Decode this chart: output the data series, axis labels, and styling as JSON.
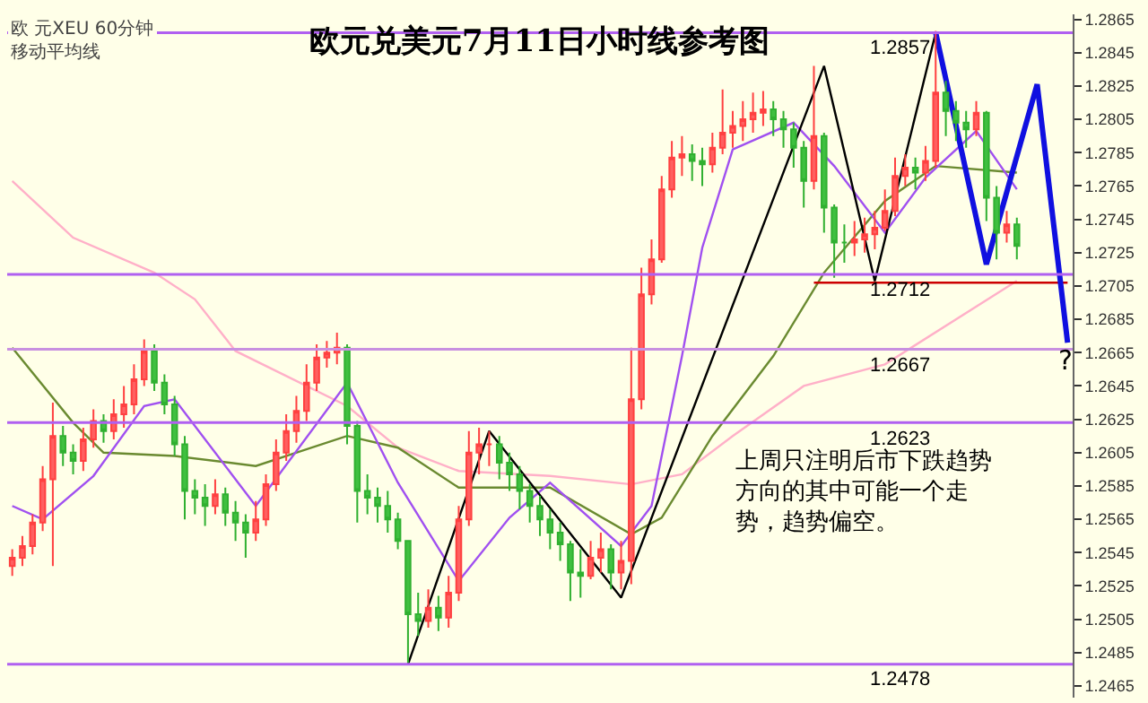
{
  "chart_data": {
    "type": "candlestick",
    "title": "欧元兑美元7月11日小时线参考图",
    "categories": [
      null,
      null,
      null,
      null,
      null,
      null,
      null,
      null,
      null,
      null,
      null,
      null,
      null,
      null,
      null,
      null,
      null,
      null,
      null,
      null,
      null,
      null,
      null,
      null,
      null,
      null,
      null,
      null,
      null,
      null,
      null,
      null,
      null,
      null,
      null,
      null,
      null,
      null,
      null,
      null,
      null,
      null,
      null,
      null,
      null,
      null,
      null,
      null,
      null,
      null,
      null,
      null,
      null,
      null,
      null,
      null,
      null,
      null,
      null,
      null,
      null,
      null,
      null,
      null,
      null,
      null,
      null,
      null,
      null,
      null,
      null,
      null,
      null,
      null,
      null,
      null,
      null,
      null,
      null,
      null,
      null,
      null,
      null,
      null,
      null,
      null,
      null,
      null,
      null,
      null,
      null,
      null,
      null,
      null,
      null,
      null,
      null,
      null,
      null,
      null,
      null,
      null,
      null,
      null,
      null
    ],
    "ohlc": [
      [
        1.2537,
        1.2547,
        1.2531,
        1.2542
      ],
      [
        1.2542,
        1.2555,
        1.2537,
        1.2549
      ],
      [
        1.2549,
        1.2568,
        1.2544,
        1.2563
      ],
      [
        1.2563,
        1.2597,
        1.2558,
        1.2589
      ],
      [
        1.2589,
        1.2635,
        1.2537,
        1.2615
      ],
      [
        1.2615,
        1.2621,
        1.2597,
        1.2605
      ],
      [
        1.2605,
        1.261,
        1.2592,
        1.26
      ],
      [
        1.26,
        1.262,
        1.2594,
        1.2613
      ],
      [
        1.2613,
        1.2631,
        1.2608,
        1.2624
      ],
      [
        1.2624,
        1.2628,
        1.2611,
        1.2618
      ],
      [
        1.2618,
        1.2637,
        1.2613,
        1.2628
      ],
      [
        1.2628,
        1.2645,
        1.262,
        1.2634
      ],
      [
        1.2634,
        1.2658,
        1.2628,
        1.2649
      ],
      [
        1.2649,
        1.2673,
        1.2645,
        1.2666
      ],
      [
        1.2666,
        1.267,
        1.2642,
        1.2647
      ],
      [
        1.2647,
        1.2652,
        1.2628,
        1.2634
      ],
      [
        1.2634,
        1.2639,
        1.2603,
        1.261
      ],
      [
        1.261,
        1.2615,
        1.2565,
        1.2582
      ],
      [
        1.2582,
        1.2589,
        1.2568,
        1.2578
      ],
      [
        1.2578,
        1.2586,
        1.2561,
        1.2573
      ],
      [
        1.2573,
        1.2589,
        1.2568,
        1.258
      ],
      [
        1.258,
        1.2584,
        1.2561,
        1.2569
      ],
      [
        1.2569,
        1.2576,
        1.2552,
        1.2563
      ],
      [
        1.2563,
        1.2568,
        1.2542,
        1.2557
      ],
      [
        1.2557,
        1.2576,
        1.2552,
        1.2565
      ],
      [
        1.2565,
        1.2592,
        1.2561,
        1.2586
      ],
      [
        1.2586,
        1.2613,
        1.2582,
        1.2605
      ],
      [
        1.2605,
        1.2628,
        1.26,
        1.2618
      ],
      [
        1.2618,
        1.2639,
        1.2611,
        1.263
      ],
      [
        1.263,
        1.2658,
        1.2624,
        1.2647
      ],
      [
        1.2647,
        1.267,
        1.2642,
        1.2662
      ],
      [
        1.2662,
        1.2672,
        1.2656,
        1.2665
      ],
      [
        1.2665,
        1.2677,
        1.2658,
        1.2668
      ],
      [
        1.2668,
        1.267,
        1.261,
        1.2621
      ],
      [
        1.2621,
        1.2624,
        1.2563,
        1.2582
      ],
      [
        1.2582,
        1.2592,
        1.2568,
        1.2578
      ],
      [
        1.2578,
        1.2584,
        1.2563,
        1.2573
      ],
      [
        1.2573,
        1.2582,
        1.2557,
        1.2565
      ],
      [
        1.2565,
        1.2569,
        1.2547,
        1.2552
      ],
      [
        1.2552,
        1.2552,
        1.2479,
        1.2508
      ],
      [
        1.2508,
        1.2521,
        1.2495,
        1.2504
      ],
      [
        1.2504,
        1.2523,
        1.25,
        1.2512
      ],
      [
        1.2512,
        1.2519,
        1.2498,
        1.2506
      ],
      [
        1.2506,
        1.2531,
        1.25,
        1.2521
      ],
      [
        1.2521,
        1.2573,
        1.2516,
        1.2565
      ],
      [
        1.2565,
        1.2618,
        1.2561,
        1.2605
      ],
      [
        1.2605,
        1.262,
        1.2592,
        1.261
      ],
      [
        1.261,
        1.2618,
        1.2597,
        1.261
      ],
      [
        1.261,
        1.2615,
        1.2589,
        1.2599
      ],
      [
        1.2599,
        1.2605,
        1.2582,
        1.2592
      ],
      [
        1.2592,
        1.2597,
        1.2571,
        1.2582
      ],
      [
        1.2582,
        1.2586,
        1.2563,
        1.2573
      ],
      [
        1.2573,
        1.2579,
        1.2555,
        1.2565
      ],
      [
        1.2565,
        1.2571,
        1.2547,
        1.2557
      ],
      [
        1.2557,
        1.2563,
        1.254,
        1.255
      ],
      [
        1.255,
        1.2552,
        1.2516,
        1.2533
      ],
      [
        1.2533,
        1.2547,
        1.2518,
        1.2531
      ],
      [
        1.2531,
        1.2552,
        1.2529,
        1.2542
      ],
      [
        1.2542,
        1.2557,
        1.2533,
        1.2547
      ],
      [
        1.2547,
        1.255,
        1.2523,
        1.2533
      ],
      [
        1.2533,
        1.2552,
        1.2523,
        1.254
      ],
      [
        1.254,
        1.2668,
        1.2526,
        1.2637
      ],
      [
        1.2637,
        1.2716,
        1.2631,
        1.27
      ],
      [
        1.27,
        1.2733,
        1.2694,
        1.2721
      ],
      [
        1.2721,
        1.2771,
        1.2719,
        1.2763
      ],
      [
        1.2763,
        1.2792,
        1.2758,
        1.2782
      ],
      [
        1.2782,
        1.2795,
        1.2771,
        1.2784
      ],
      [
        1.2784,
        1.279,
        1.2768,
        1.278
      ],
      [
        1.278,
        1.2788,
        1.2765,
        1.2778
      ],
      [
        1.2778,
        1.2797,
        1.2773,
        1.2788
      ],
      [
        1.2788,
        1.2823,
        1.2784,
        1.2797
      ],
      [
        1.2797,
        1.281,
        1.2788,
        1.2801
      ],
      [
        1.2801,
        1.2816,
        1.2792,
        1.2805
      ],
      [
        1.2805,
        1.2821,
        1.2797,
        1.2809
      ],
      [
        1.2809,
        1.2822,
        1.2801,
        1.2811
      ],
      [
        1.2811,
        1.2816,
        1.2795,
        1.2805
      ],
      [
        1.2805,
        1.281,
        1.2788,
        1.2799
      ],
      [
        1.2799,
        1.2803,
        1.2776,
        1.2788
      ],
      [
        1.2788,
        1.2792,
        1.2752,
        1.2768
      ],
      [
        1.2768,
        1.2837,
        1.2763,
        1.2795
      ],
      [
        1.2795,
        1.2797,
        1.2737,
        1.2752
      ],
      [
        1.2752,
        1.2754,
        1.271,
        1.2731
      ],
      [
        1.2731,
        1.2742,
        1.2719,
        1.2731
      ],
      [
        1.2731,
        1.2744,
        1.2723,
        1.2733
      ],
      [
        1.2733,
        1.2746,
        1.2725,
        1.2736
      ],
      [
        1.2736,
        1.275,
        1.2727,
        1.274
      ],
      [
        1.274,
        1.2763,
        1.2738,
        1.275
      ],
      [
        1.275,
        1.2782,
        1.2747,
        1.2771
      ],
      [
        1.2771,
        1.2784,
        1.2765,
        1.2776
      ],
      [
        1.2776,
        1.2782,
        1.2763,
        1.2773
      ],
      [
        1.2773,
        1.2789,
        1.2768,
        1.278
      ],
      [
        1.278,
        1.2858,
        1.2776,
        1.2821
      ],
      [
        1.2821,
        1.2828,
        1.2795,
        1.281
      ],
      [
        1.281,
        1.2816,
        1.2792,
        1.2803
      ],
      [
        1.2803,
        1.281,
        1.2788,
        1.2799
      ],
      [
        1.2799,
        1.2816,
        1.2795,
        1.2809
      ],
      [
        1.2809,
        1.281,
        1.2744,
        1.2758
      ],
      [
        1.2758,
        1.2765,
        1.2721,
        1.2737
      ],
      [
        1.2737,
        1.275,
        1.2731,
        1.2742
      ],
      [
        1.2742,
        1.2746,
        1.2721,
        1.2729
      ],
      null,
      null,
      null,
      null,
      null
    ],
    "series": [
      {
        "type": "line",
        "color": "#ffb0c8",
        "values": [
          1.2768,
          null,
          null,
          null,
          null,
          null,
          1.2734,
          null,
          null,
          null,
          null,
          null,
          null,
          null,
          1.2713,
          null,
          null,
          null,
          1.2697,
          null,
          null,
          null,
          1.2666,
          null,
          null,
          null,
          null,
          null,
          null,
          null,
          null,
          null,
          null,
          1.2633,
          null,
          null,
          null,
          null,
          1.2608,
          null,
          null,
          null,
          null,
          null,
          1.2594,
          null,
          null,
          null,
          null,
          null,
          null,
          null,
          null,
          1.2591,
          null,
          null,
          null,
          null,
          null,
          null,
          null,
          1.2586,
          null,
          null,
          null,
          null,
          1.2592,
          null,
          null,
          null,
          null,
          1.2615,
          null,
          null,
          null,
          null,
          null,
          null,
          1.2645,
          null,
          null,
          null,
          null,
          null,
          null,
          null,
          1.2658,
          null,
          null,
          null,
          null,
          null,
          null,
          null,
          null,
          null,
          null,
          null,
          null,
          1.2708,
          null,
          null,
          null,
          null,
          null
        ]
      },
      {
        "type": "line",
        "color": "#6a8a30",
        "values": [
          1.2668,
          null,
          null,
          null,
          null,
          null,
          1.2623,
          null,
          null,
          1.2605,
          null,
          null,
          null,
          null,
          null,
          null,
          1.2603,
          null,
          null,
          null,
          null,
          null,
          null,
          null,
          1.2597,
          null,
          null,
          null,
          null,
          null,
          null,
          null,
          null,
          1.2615,
          null,
          null,
          null,
          null,
          1.2608,
          null,
          null,
          null,
          null,
          null,
          1.2584,
          null,
          null,
          null,
          null,
          null,
          null,
          null,
          null,
          1.2584,
          null,
          null,
          null,
          null,
          null,
          null,
          null,
          1.2556,
          null,
          null,
          1.2566,
          null,
          null,
          null,
          null,
          1.2615,
          null,
          null,
          null,
          null,
          null,
          1.2663,
          null,
          null,
          null,
          null,
          1.2713,
          null,
          null,
          null,
          null,
          null,
          1.2756,
          null,
          null,
          null,
          null,
          1.2777,
          null,
          null,
          null,
          null,
          null,
          null,
          null,
          1.2773,
          null,
          null,
          null,
          null,
          null
        ]
      },
      {
        "type": "line",
        "color": "#a050f0",
        "values": [
          1.2573,
          null,
          null,
          1.2565,
          null,
          null,
          null,
          null,
          1.2591,
          null,
          null,
          null,
          null,
          1.2633,
          null,
          null,
          1.2637,
          null,
          null,
          null,
          null,
          null,
          null,
          null,
          1.2573,
          null,
          null,
          null,
          null,
          null,
          null,
          null,
          null,
          1.2647,
          null,
          null,
          null,
          null,
          1.2587,
          null,
          null,
          null,
          null,
          null,
          1.2528,
          null,
          null,
          null,
          null,
          1.2566,
          null,
          null,
          null,
          1.2587,
          null,
          null,
          null,
          null,
          null,
          null,
          1.2549,
          null,
          null,
          1.2573,
          null,
          null,
          1.2663,
          null,
          1.2728,
          null,
          null,
          1.2787,
          null,
          null,
          null,
          null,
          null,
          1.2803,
          null,
          null,
          null,
          1.2777,
          null,
          null,
          null,
          null,
          1.2737,
          null,
          null,
          null,
          1.277,
          null,
          null,
          null,
          null,
          1.2798,
          null,
          null,
          null,
          1.2763,
          null,
          null,
          null,
          null,
          null
        ]
      },
      {
        "type": "line",
        "color": "#000000",
        "values": [
          null,
          null,
          null,
          null,
          null,
          null,
          null,
          null,
          null,
          null,
          null,
          null,
          null,
          null,
          null,
          null,
          null,
          null,
          null,
          null,
          null,
          null,
          null,
          null,
          null,
          null,
          null,
          null,
          null,
          null,
          null,
          null,
          null,
          null,
          null,
          null,
          null,
          null,
          null,
          1.2478,
          null,
          null,
          null,
          null,
          null,
          null,
          null,
          1.2618,
          null,
          null,
          null,
          null,
          null,
          null,
          null,
          null,
          null,
          null,
          null,
          null,
          1.2518,
          null,
          null,
          null,
          null,
          null,
          null,
          null,
          null,
          null,
          null,
          null,
          null,
          null,
          null,
          null,
          null,
          null,
          null,
          null,
          1.2837,
          null,
          null,
          null,
          null,
          1.2708,
          null,
          null,
          null,
          null,
          null,
          1.2857,
          null,
          null,
          null,
          null,
          null,
          null,
          null,
          null,
          null,
          null,
          null,
          null,
          null
        ]
      },
      {
        "type": "line",
        "color": "#cc0000",
        "values": [
          null,
          null,
          null,
          null,
          null,
          null,
          null,
          null,
          null,
          null,
          null,
          null,
          null,
          null,
          null,
          null,
          null,
          null,
          null,
          null,
          null,
          null,
          null,
          null,
          null,
          null,
          null,
          null,
          null,
          null,
          null,
          null,
          null,
          null,
          null,
          null,
          null,
          null,
          null,
          null,
          null,
          null,
          null,
          null,
          null,
          null,
          null,
          null,
          null,
          null,
          null,
          null,
          null,
          null,
          null,
          null,
          null,
          null,
          null,
          null,
          null,
          null,
          null,
          null,
          null,
          null,
          null,
          null,
          null,
          null,
          null,
          null,
          null,
          null,
          null,
          null,
          null,
          null,
          null,
          1.2707,
          null,
          null,
          null,
          null,
          null,
          null,
          null,
          null,
          null,
          null,
          null,
          null,
          null,
          null,
          null,
          null,
          null,
          null,
          null,
          null,
          null,
          null,
          null,
          null,
          1.2707
        ]
      },
      {
        "type": "line",
        "color": "#1010e0",
        "values": [
          null,
          null,
          null,
          null,
          null,
          null,
          null,
          null,
          null,
          null,
          null,
          null,
          null,
          null,
          null,
          null,
          null,
          null,
          null,
          null,
          null,
          null,
          null,
          null,
          null,
          null,
          null,
          null,
          null,
          null,
          null,
          null,
          null,
          null,
          null,
          null,
          null,
          null,
          null,
          null,
          null,
          null,
          null,
          null,
          null,
          null,
          null,
          null,
          null,
          null,
          null,
          null,
          null,
          null,
          null,
          null,
          null,
          null,
          null,
          null,
          null,
          null,
          null,
          null,
          null,
          null,
          null,
          null,
          null,
          null,
          null,
          null,
          null,
          null,
          null,
          null,
          null,
          null,
          null,
          null,
          null,
          null,
          null,
          null,
          null,
          null,
          null,
          null,
          null,
          null,
          null,
          1.2857,
          null,
          null,
          null,
          null,
          1.2718,
          null,
          null,
          null,
          null,
          1.2826,
          null,
          null,
          1.2671
        ]
      }
    ],
    "ylim": [
      1.2458,
      1.2868
    ],
    "yticks": [
      1.2465,
      1.2485,
      1.2505,
      1.2525,
      1.2545,
      1.2565,
      1.2585,
      1.2605,
      1.2625,
      1.2645,
      1.2665,
      1.2685,
      1.2705,
      1.2725,
      1.2745,
      1.2765,
      1.2785,
      1.2805,
      1.2825,
      1.2845,
      1.2865
    ],
    "tick_labels": "y",
    "grid": false,
    "ref_lines": [
      {
        "axis": "y",
        "value": 1.2857,
        "label": "1.2857",
        "color": "#b060f0"
      },
      {
        "axis": "y",
        "value": 1.2712,
        "label": "1.2712",
        "color": "#b060f0"
      },
      {
        "axis": "y",
        "value": 1.2667,
        "label": "1.2667",
        "color": "#c890e0"
      },
      {
        "axis": "y",
        "value": 1.2623,
        "label": "1.2623",
        "color": "#b060f0"
      },
      {
        "axis": "y",
        "value": 1.2478,
        "label": "1.2478",
        "color": "#b060f0"
      }
    ],
    "annotations": [
      "欧 元XEU 60分钟",
      "移动平均线",
      "上周只注明后市下跌趋势方向的其中可能一个走势，趋势偏空。",
      "?"
    ]
  }
}
